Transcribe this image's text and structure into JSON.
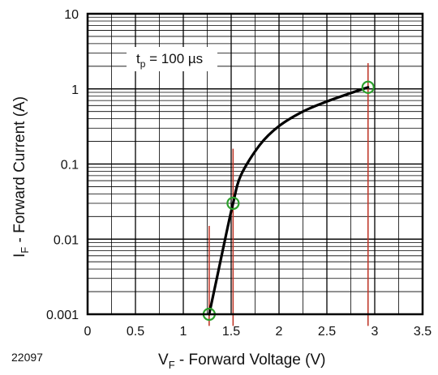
{
  "figure_code": "22097",
  "chart_data": {
    "type": "line",
    "x_axis": {
      "label_main": "V",
      "label_sub": "F",
      "label_rest": " - Forward Voltage (V)",
      "range": [
        0,
        3.5
      ],
      "ticks": [
        0,
        0.5,
        1,
        1.5,
        2,
        2.5,
        3,
        3.5
      ],
      "tick_labels": [
        "0",
        "0.5",
        "1",
        "1.5",
        "2",
        "2.5",
        "3",
        "3.5"
      ]
    },
    "y_axis": {
      "label_main": "I",
      "label_sub": "F",
      "label_rest": " - Forward Current (A)",
      "scale": "log",
      "range": [
        0.001,
        10
      ],
      "ticks": [
        0.001,
        0.01,
        0.1,
        1,
        10
      ],
      "tick_labels": [
        "0.001",
        "0.01",
        "0.1",
        "1",
        "10"
      ]
    },
    "grid": true,
    "annotation": {
      "main": "t",
      "sub": "p",
      "rest": " = 100 µs"
    },
    "series": [
      {
        "color": "#000000",
        "points": [
          [
            1.27,
            0.001
          ],
          [
            1.35,
            0.003
          ],
          [
            1.45,
            0.012
          ],
          [
            1.52,
            0.03
          ],
          [
            1.6,
            0.07
          ],
          [
            1.8,
            0.18
          ],
          [
            2.0,
            0.32
          ],
          [
            2.25,
            0.5
          ],
          [
            2.5,
            0.68
          ],
          [
            2.75,
            0.88
          ],
          [
            2.93,
            1.05
          ]
        ]
      }
    ],
    "highlight_points": [
      [
        1.27,
        0.001
      ],
      [
        1.52,
        0.03
      ],
      [
        2.93,
        1.05
      ]
    ],
    "highlight_color": "#2ca02c",
    "vertical_markers": [
      {
        "x": 1.27,
        "y_from": 0.0007,
        "y_to": 0.015
      },
      {
        "x": 1.52,
        "y_from": 0.0007,
        "y_to": 0.16
      },
      {
        "x": 2.93,
        "y_from": 0.0007,
        "y_to": 2.2
      }
    ],
    "marker_color": "#c0392b"
  }
}
